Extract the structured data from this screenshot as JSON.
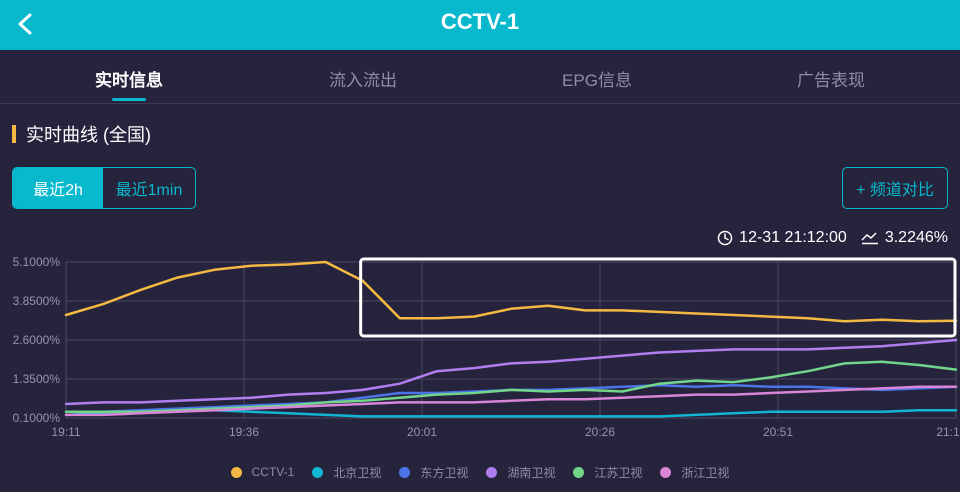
{
  "header": {
    "title": "CCTV-1",
    "back_icon": "chevron-left-icon"
  },
  "tabs": [
    {
      "label": "实时信息",
      "active": true
    },
    {
      "label": "流入流出",
      "active": false
    },
    {
      "label": "EPG信息",
      "active": false
    },
    {
      "label": "广告表现",
      "active": false
    }
  ],
  "section": {
    "title": "实时曲线 (全国)"
  },
  "range_toggle": {
    "options": [
      "最近2h",
      "最近1min"
    ],
    "selected": "最近2h"
  },
  "compare_button": {
    "label": "+ 频道对比"
  },
  "readout": {
    "time": "12-31 21:12:00",
    "value": "3.2246%",
    "clock_icon": "clock-icon",
    "rating_icon": "trend-icon"
  },
  "colors": {
    "accent": "#08b8cc",
    "header_bg": "#08b8cc",
    "page_bg": "#26243d"
  },
  "chart_data": {
    "type": "line",
    "x_ticks": [
      "19:11",
      "19:36",
      "20:01",
      "20:26",
      "20:51",
      "21:1"
    ],
    "y_ticks": [
      "0.1000%",
      "1.3500%",
      "2.6000%",
      "3.8500%",
      "5.1000%"
    ],
    "ylim": [
      0.1,
      5.1
    ],
    "xlim": [
      0,
      120
    ],
    "grid": true,
    "legend_position": "bottom",
    "highlight_range": [
      40,
      120
    ],
    "x": [
      0,
      5,
      10,
      15,
      20,
      25,
      30,
      35,
      40,
      45,
      50,
      55,
      60,
      65,
      70,
      75,
      80,
      85,
      90,
      95,
      100,
      105,
      110,
      115,
      120
    ],
    "series": [
      {
        "name": "CCTV-1",
        "color": "#f4b942",
        "values": [
          3.4,
          3.75,
          4.2,
          4.6,
          4.85,
          4.98,
          5.02,
          5.1,
          4.5,
          3.3,
          3.3,
          3.35,
          3.6,
          3.7,
          3.55,
          3.55,
          3.5,
          3.45,
          3.4,
          3.35,
          3.3,
          3.2,
          3.25,
          3.2,
          3.22
        ]
      },
      {
        "name": "北京卫视",
        "color": "#12b6d3",
        "values": [
          0.2,
          0.25,
          0.3,
          0.35,
          0.35,
          0.3,
          0.25,
          0.2,
          0.15,
          0.15,
          0.15,
          0.15,
          0.15,
          0.15,
          0.15,
          0.15,
          0.15,
          0.2,
          0.25,
          0.3,
          0.3,
          0.3,
          0.3,
          0.35,
          0.35
        ]
      },
      {
        "name": "东方卫视",
        "color": "#4a74e8",
        "values": [
          0.3,
          0.3,
          0.35,
          0.4,
          0.45,
          0.5,
          0.55,
          0.6,
          0.75,
          0.9,
          0.9,
          0.95,
          1.0,
          1.0,
          1.05,
          1.1,
          1.15,
          1.1,
          1.15,
          1.1,
          1.1,
          1.05,
          1.0,
          1.05,
          1.1
        ]
      },
      {
        "name": "湖南卫视",
        "color": "#b07ef0",
        "values": [
          0.55,
          0.6,
          0.6,
          0.65,
          0.7,
          0.75,
          0.85,
          0.9,
          1.0,
          1.2,
          1.6,
          1.7,
          1.85,
          1.9,
          2.0,
          2.1,
          2.2,
          2.25,
          2.3,
          2.3,
          2.3,
          2.35,
          2.4,
          2.5,
          2.6
        ]
      },
      {
        "name": "江苏卫视",
        "color": "#72d58a",
        "values": [
          0.3,
          0.3,
          0.3,
          0.35,
          0.4,
          0.45,
          0.5,
          0.6,
          0.65,
          0.75,
          0.85,
          0.9,
          1.0,
          0.95,
          1.0,
          0.95,
          1.2,
          1.3,
          1.25,
          1.4,
          1.6,
          1.85,
          1.9,
          1.8,
          1.65
        ]
      },
      {
        "name": "浙江卫视",
        "color": "#d985d8",
        "values": [
          0.2,
          0.2,
          0.25,
          0.3,
          0.35,
          0.4,
          0.45,
          0.5,
          0.55,
          0.6,
          0.6,
          0.6,
          0.65,
          0.7,
          0.7,
          0.75,
          0.8,
          0.85,
          0.85,
          0.9,
          0.95,
          1.0,
          1.05,
          1.1,
          1.1
        ]
      }
    ]
  }
}
